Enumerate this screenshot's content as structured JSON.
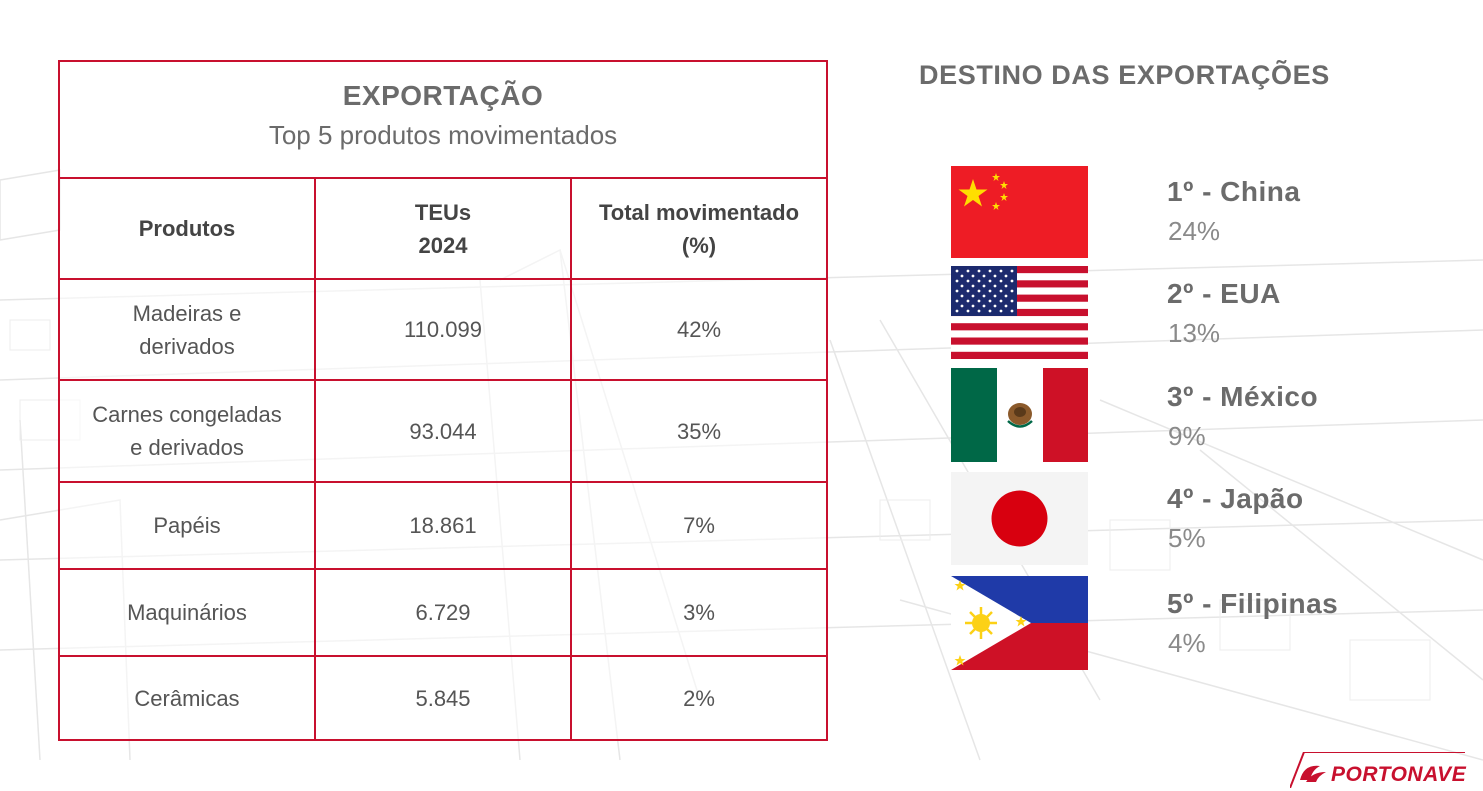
{
  "table": {
    "title": "EXPORTAÇÃO",
    "subtitle": "Top 5 produtos movimentados",
    "headers": {
      "produtos": "Produtos",
      "teus_line1": "TEUs",
      "teus_line2": "2024",
      "total_line1": "Total movimentado",
      "total_line2": "(%)"
    },
    "rows": [
      {
        "produto_line1": "Madeiras e",
        "produto_line2": "derivados",
        "teus": "110.099",
        "percent": "42%"
      },
      {
        "produto_line1": "Carnes congeladas",
        "produto_line2": "e derivados",
        "teus": "93.044",
        "percent": "35%"
      },
      {
        "produto_line1": "Papéis",
        "produto_line2": "",
        "teus": "18.861",
        "percent": "7%"
      },
      {
        "produto_line1": "Maquinários",
        "produto_line2": "",
        "teus": "6.729",
        "percent": "3%"
      },
      {
        "produto_line1": "Cerâmicas",
        "produto_line2": "",
        "teus": "5.845",
        "percent": "2%"
      }
    ]
  },
  "destinations": {
    "title": "DESTINO DAS EXPORTAÇÕES",
    "items": [
      {
        "label": "1º - China",
        "percent": "24%",
        "flag": "china-flag-icon"
      },
      {
        "label": "2º - EUA",
        "percent": "13%",
        "flag": "usa-flag-icon"
      },
      {
        "label": "3º - México",
        "percent": "9%",
        "flag": "mexico-flag-icon"
      },
      {
        "label": "4º - Japão",
        "percent": "5%",
        "flag": "japan-flag-icon"
      },
      {
        "label": "5º - Filipinas",
        "percent": "4%",
        "flag": "philippines-flag-icon"
      }
    ]
  },
  "brand": {
    "logo_text": "PORTONAVE",
    "accent_color": "#c8102e"
  }
}
